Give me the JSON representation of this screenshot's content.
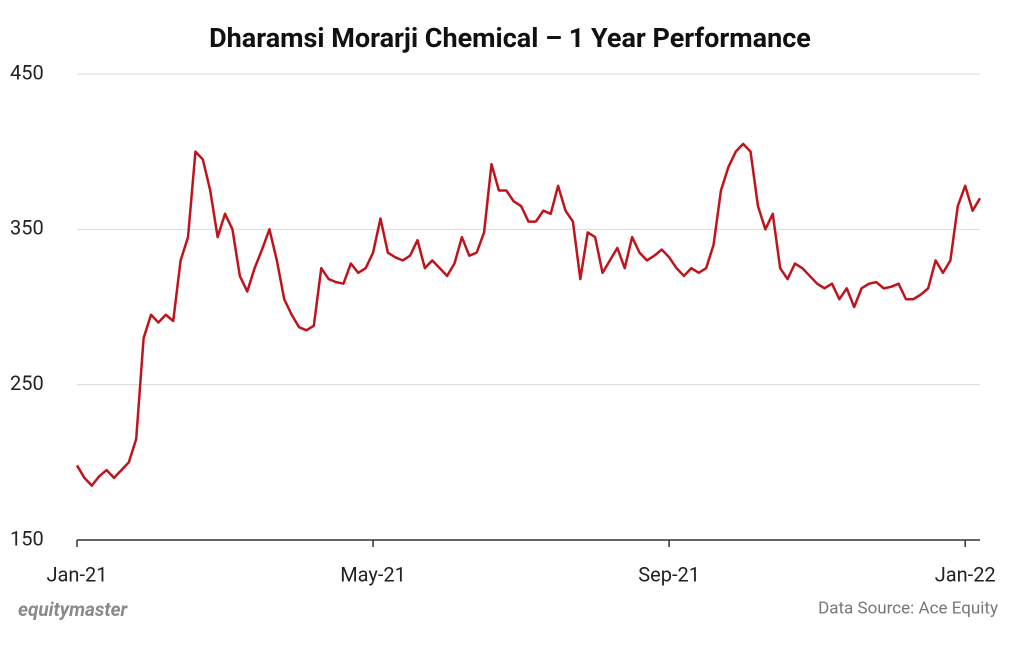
{
  "chart_data": {
    "type": "line",
    "title": "Dharamsi Morarji Chemical – 1 Year Performance",
    "brand": "equitymaster",
    "source": "Data Source: Ace Equity",
    "categories": [
      "Jan-21",
      null,
      null,
      null,
      null,
      null,
      null,
      null,
      null,
      null,
      null,
      null,
      null,
      null,
      null,
      null,
      null,
      null,
      null,
      null,
      null,
      null,
      null,
      null,
      null,
      null,
      null,
      null,
      null,
      null,
      null,
      null,
      null,
      null,
      null,
      null,
      null,
      null,
      null,
      null,
      "May-21",
      null,
      null,
      null,
      null,
      null,
      null,
      null,
      null,
      null,
      null,
      null,
      null,
      null,
      null,
      null,
      null,
      null,
      null,
      null,
      null,
      null,
      null,
      null,
      null,
      null,
      null,
      null,
      null,
      null,
      null,
      null,
      null,
      null,
      null,
      null,
      null,
      null,
      null,
      null,
      "Sep-21",
      null,
      null,
      null,
      null,
      null,
      null,
      null,
      null,
      null,
      null,
      null,
      null,
      null,
      null,
      null,
      null,
      null,
      null,
      null,
      null,
      null,
      null,
      null,
      null,
      null,
      null,
      null,
      null,
      null,
      null,
      null,
      null,
      null,
      null,
      null,
      null,
      null,
      null,
      null,
      "Jan-22",
      null,
      null
    ],
    "series": [
      {
        "name": "Dharamsi Morarji Chemical",
        "color": "#c0141c",
        "values": [
          198,
          190,
          185,
          191,
          195,
          190,
          195,
          200,
          215,
          280,
          295,
          290,
          295,
          291,
          330,
          345,
          400,
          395,
          375,
          345,
          360,
          350,
          320,
          310,
          325,
          337,
          350,
          330,
          305,
          295,
          287,
          285,
          288,
          325,
          318,
          316,
          315,
          328,
          322,
          325,
          335,
          357,
          335,
          332,
          330,
          333,
          343,
          325,
          330,
          325,
          320,
          328,
          345,
          333,
          335,
          348,
          392,
          375,
          375,
          368,
          365,
          355,
          355,
          362,
          360,
          378,
          362,
          355,
          318,
          348,
          345,
          322,
          330,
          338,
          325,
          345,
          335,
          330,
          333,
          337,
          332,
          325,
          320,
          325,
          322,
          325,
          340,
          375,
          390,
          400,
          405,
          400,
          365,
          350,
          360,
          325,
          318,
          328,
          325,
          320,
          315,
          312,
          315,
          305,
          312,
          300,
          312,
          315,
          316,
          312,
          313,
          315,
          305,
          305,
          308,
          312,
          330,
          322,
          330,
          365,
          378,
          362,
          370
        ]
      }
    ],
    "ylim": [
      150,
      450
    ],
    "yticks": [
      150,
      250,
      350,
      450
    ],
    "grid": true
  }
}
